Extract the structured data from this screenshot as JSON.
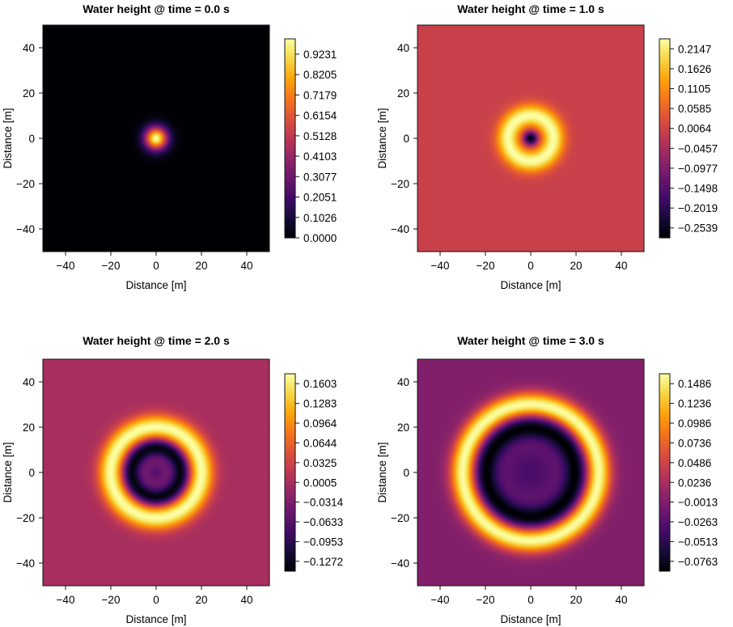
{
  "chart_data": [
    {
      "type": "heatmap",
      "title": "Water height  @ time = 0.0 s",
      "xlabel": "Distance [m]",
      "ylabel": "Distance [m]",
      "xlim": [
        -50,
        50
      ],
      "ylim": [
        -50,
        50
      ],
      "xticks": [
        "−40",
        "−20",
        "0",
        "20",
        "40"
      ],
      "yticks": [
        "40",
        "20",
        "0",
        "−20",
        "−40"
      ],
      "colormap": "inferno",
      "colorbar_ticks": [
        "0.9231",
        "0.8205",
        "0.7179",
        "0.6154",
        "0.5128",
        "0.4103",
        "0.3077",
        "0.2051",
        "0.1026",
        "0.0000"
      ],
      "colorbar_range": [
        0.0,
        1.0
      ],
      "field": {
        "background": 0.0,
        "rings": [
          {
            "center_radius": 0,
            "width": 5,
            "amplitude": 1.0
          }
        ]
      }
    },
    {
      "type": "heatmap",
      "title": "Water height  @ time = 1.0 s",
      "xlabel": "Distance [m]",
      "ylabel": "Distance [m]",
      "xlim": [
        -50,
        50
      ],
      "ylim": [
        -50,
        50
      ],
      "xticks": [
        "−40",
        "−20",
        "0",
        "20",
        "40"
      ],
      "yticks": [
        "40",
        "20",
        "0",
        "−20",
        "−40"
      ],
      "colormap": "inferno",
      "colorbar_ticks": [
        "0.2147",
        "0.1626",
        "0.1105",
        "0.0585",
        "0.0064",
        "−0.0457",
        "−0.0977",
        "−0.1498",
        "−0.2019",
        "−0.2539"
      ],
      "colorbar_range": [
        -0.2799,
        0.2407
      ],
      "field": {
        "background": 0.0,
        "rings": [
          {
            "center_radius": 10,
            "width": 5,
            "amplitude": 0.2407
          },
          {
            "center_radius": 0,
            "width": 3,
            "amplitude": -0.2799
          }
        ]
      }
    },
    {
      "type": "heatmap",
      "title": "Water height  @ time = 2.0 s",
      "xlabel": "Distance [m]",
      "ylabel": "Distance [m]",
      "xlim": [
        -50,
        50
      ],
      "ylim": [
        -50,
        50
      ],
      "xticks": [
        "−40",
        "−20",
        "0",
        "20",
        "40"
      ],
      "yticks": [
        "40",
        "20",
        "0",
        "−20",
        "−40"
      ],
      "colormap": "inferno",
      "colorbar_ticks": [
        "0.1603",
        "0.1283",
        "0.0964",
        "0.0644",
        "0.0325",
        "0.0005",
        "−0.0314",
        "−0.0633",
        "−0.0953",
        "−0.1272"
      ],
      "colorbar_range": [
        -0.1432,
        0.1763
      ],
      "field": {
        "background": 0.0,
        "rings": [
          {
            "center_radius": 20,
            "width": 5.5,
            "amplitude": 0.1763
          },
          {
            "center_radius": 11,
            "width": 4,
            "amplitude": -0.1432
          },
          {
            "center_radius": 0,
            "width": 6,
            "amplitude": -0.06
          }
        ]
      }
    },
    {
      "type": "heatmap",
      "title": "Water height  @ time = 3.0 s",
      "xlabel": "Distance [m]",
      "ylabel": "Distance [m]",
      "xlim": [
        -50,
        50
      ],
      "ylim": [
        -50,
        50
      ],
      "xticks": [
        "−40",
        "−20",
        "0",
        "20",
        "40"
      ],
      "yticks": [
        "40",
        "20",
        "0",
        "−20",
        "−40"
      ],
      "colormap": "inferno",
      "colorbar_ticks": [
        "0.1486",
        "0.1236",
        "0.0986",
        "0.0736",
        "0.0486",
        "0.0236",
        "−0.0013",
        "−0.0263",
        "−0.0513",
        "−0.0763"
      ],
      "colorbar_range": [
        -0.0888,
        0.1611
      ],
      "field": {
        "background": 0.0,
        "rings": [
          {
            "center_radius": 30,
            "width": 5.5,
            "amplitude": 0.1611
          },
          {
            "center_radius": 20,
            "width": 5,
            "amplitude": -0.0888
          },
          {
            "center_radius": 0,
            "width": 14,
            "amplitude": -0.035
          }
        ]
      }
    }
  ]
}
